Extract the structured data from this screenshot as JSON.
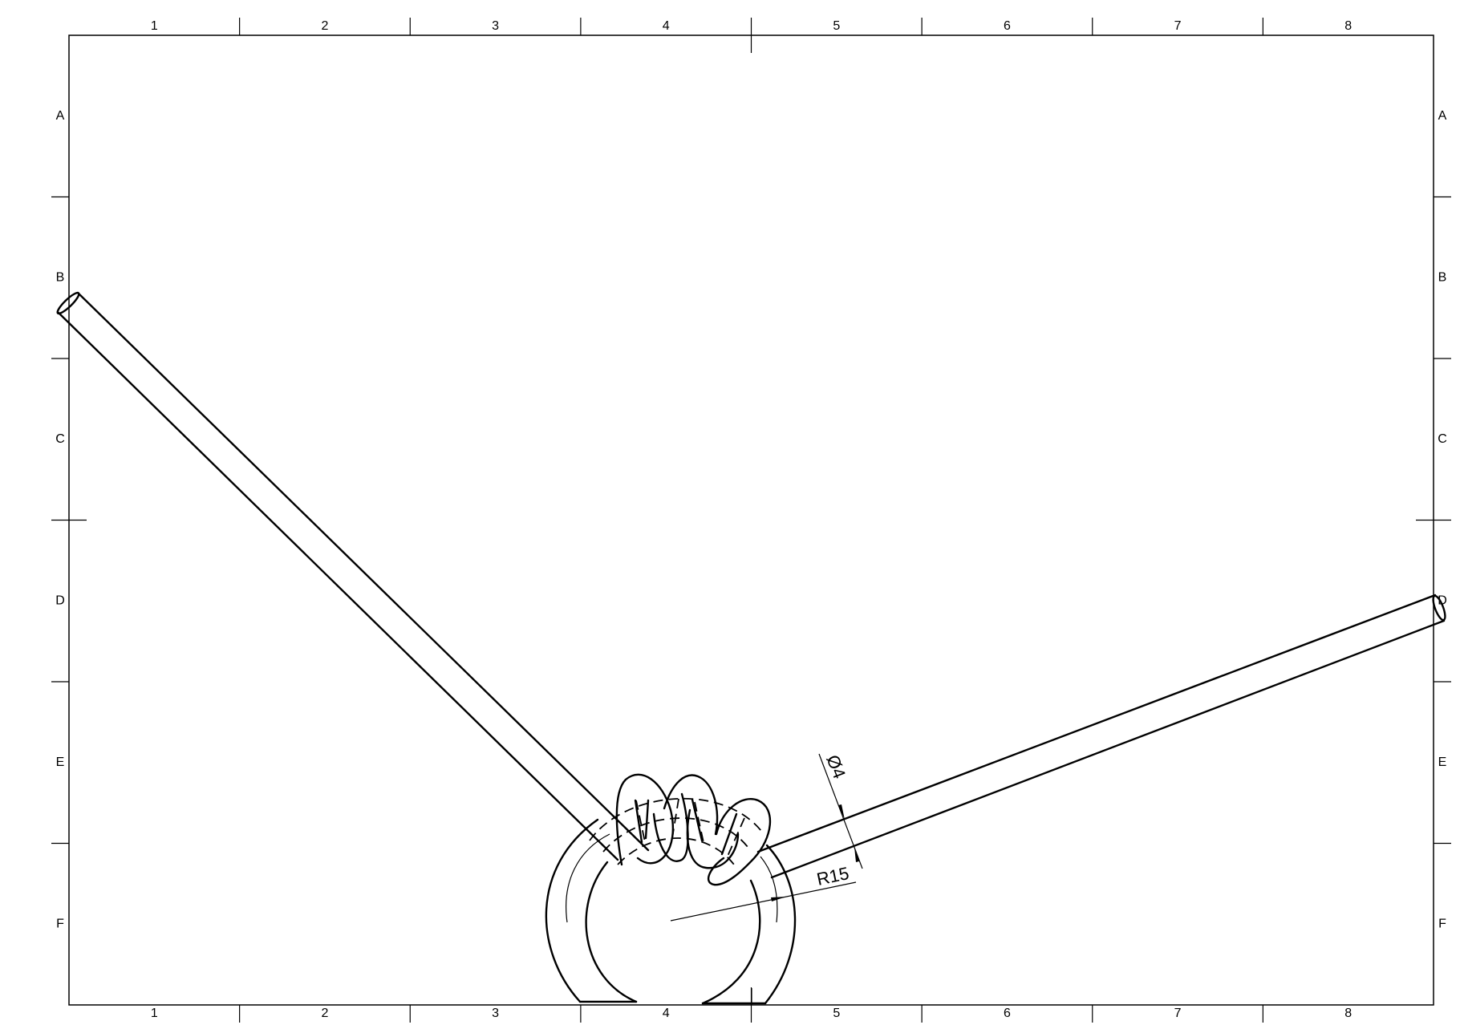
{
  "sheet": {
    "columns": [
      "1",
      "2",
      "3",
      "4",
      "5",
      "6",
      "7",
      "8"
    ],
    "rows": [
      "A",
      "B",
      "C",
      "D",
      "E",
      "F"
    ]
  },
  "dimensions": {
    "diameter": "Ø4",
    "radius": "R15"
  }
}
